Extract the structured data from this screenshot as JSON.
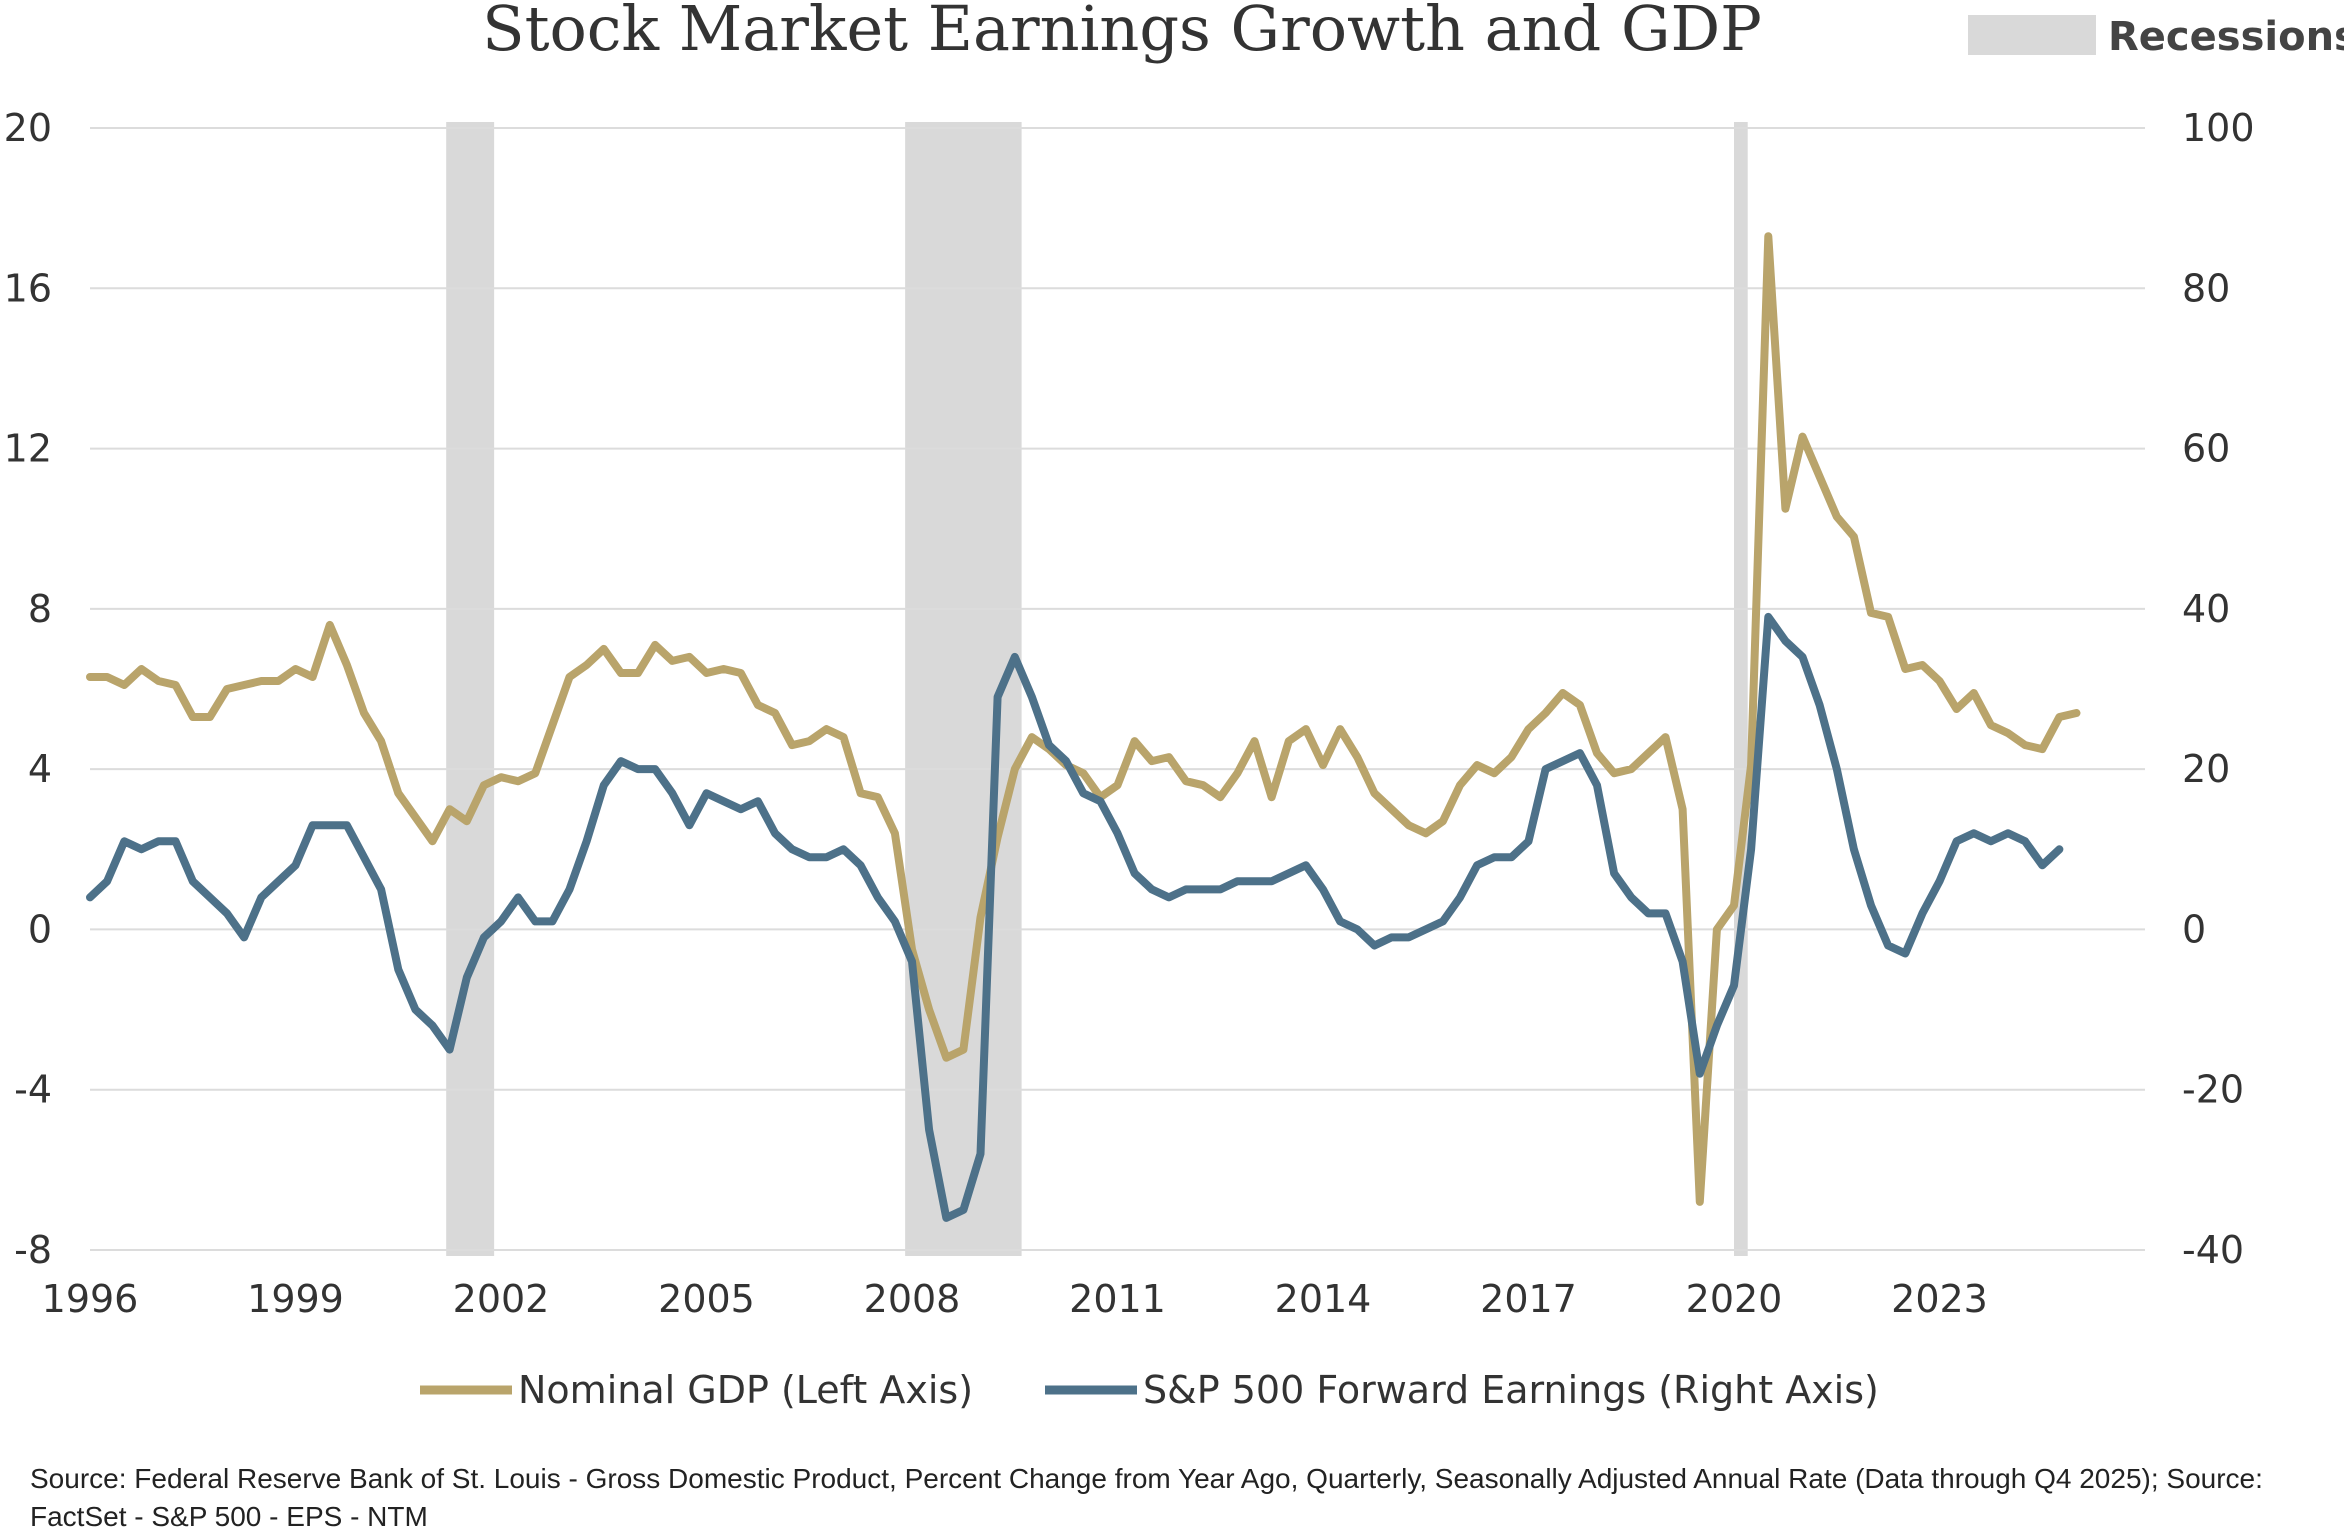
{
  "chart_data": {
    "type": "line",
    "title": "Stock Market Earnings Growth and GDP",
    "recession_label": "Recessions",
    "left_axis": {
      "min": -8,
      "max": 20,
      "ticks": [
        "20",
        "16",
        "12",
        "8",
        "4",
        "0",
        "-4",
        "-8"
      ],
      "tick_values": [
        20,
        16,
        12,
        8,
        4,
        0,
        -4,
        -8
      ]
    },
    "right_axis": {
      "min": -40,
      "max": 100,
      "ticks": [
        "100",
        "80",
        "60",
        "40",
        "20",
        "0",
        "-20",
        "-40"
      ],
      "tick_values": [
        100,
        80,
        60,
        40,
        20,
        0,
        -20,
        -40
      ]
    },
    "x_axis": {
      "min": 1996,
      "max": 2026,
      "ticks": [
        "1996",
        "1999",
        "2002",
        "2005",
        "2008",
        "2011",
        "2014",
        "2017",
        "2020",
        "2023"
      ],
      "tick_values": [
        1996,
        1999,
        2002,
        2005,
        2008,
        2011,
        2014,
        2017,
        2020,
        2023
      ]
    },
    "grid": true,
    "legend_position": "bottom",
    "recessions": [
      {
        "start": 2001.2,
        "end": 2001.9
      },
      {
        "start": 2007.9,
        "end": 2009.6
      },
      {
        "start": 2020.0,
        "end": 2020.2
      }
    ],
    "series": [
      {
        "name": "Nominal GDP (Left Axis)",
        "axis": "left",
        "color": "#b9a46b",
        "x_start": 1996.0,
        "x_step": 0.25,
        "values": [
          6.3,
          6.3,
          6.1,
          6.5,
          6.2,
          6.1,
          5.3,
          5.3,
          6.0,
          6.1,
          6.2,
          6.2,
          6.5,
          6.3,
          7.6,
          6.6,
          5.4,
          4.7,
          3.4,
          2.8,
          2.2,
          3.0,
          2.7,
          3.6,
          3.8,
          3.7,
          3.9,
          5.1,
          6.3,
          6.6,
          7.0,
          6.4,
          6.4,
          7.1,
          6.7,
          6.8,
          6.4,
          6.5,
          6.4,
          5.6,
          5.4,
          4.6,
          4.7,
          5.0,
          4.8,
          3.4,
          3.3,
          2.4,
          -0.5,
          -2.0,
          -3.2,
          -3.0,
          0.3,
          2.3,
          4.0,
          4.8,
          4.5,
          4.1,
          3.9,
          3.3,
          3.6,
          4.7,
          4.2,
          4.3,
          3.7,
          3.6,
          3.3,
          3.9,
          4.7,
          3.3,
          4.7,
          5.0,
          4.1,
          5.0,
          4.3,
          3.4,
          3.0,
          2.6,
          2.4,
          2.7,
          3.6,
          4.1,
          3.9,
          4.3,
          5.0,
          5.4,
          5.9,
          5.6,
          4.4,
          3.9,
          4.0,
          4.4,
          4.8,
          3.0,
          -6.8,
          0.0,
          0.6,
          4.1,
          17.3,
          10.5,
          12.3,
          11.3,
          10.3,
          9.8,
          7.9,
          7.8,
          6.5,
          6.6,
          6.2,
          5.5,
          5.9,
          5.1,
          4.9,
          4.6,
          4.5,
          5.3,
          5.4
        ]
      },
      {
        "name": "S&P 500 Forward Earnings (Right Axis)",
        "axis": "right",
        "color": "#4d7189",
        "x_start": 1996.0,
        "x_step": 0.25,
        "values": [
          4,
          6,
          11,
          10,
          11,
          11,
          6,
          4,
          2,
          -1,
          4,
          6,
          8,
          13,
          13,
          13,
          9,
          5,
          -5,
          -10,
          -12,
          -15,
          -6,
          -1,
          1,
          4,
          1,
          1,
          5,
          11,
          18,
          21,
          20,
          20,
          17,
          13,
          17,
          16,
          15,
          16,
          12,
          10,
          9,
          9,
          10,
          8,
          4,
          1,
          -4,
          -25,
          -36,
          -35,
          -28,
          29,
          34,
          29,
          23,
          21,
          17,
          16,
          12,
          7,
          5,
          4,
          5,
          5,
          5,
          6,
          6,
          6,
          7,
          8,
          5,
          1,
          0,
          -2,
          -1,
          -1,
          0,
          1,
          4,
          8,
          9,
          9,
          11,
          20,
          21,
          22,
          18,
          7,
          4,
          2,
          2,
          -4,
          -18,
          -12,
          -7,
          10,
          39,
          36,
          34,
          28,
          20,
          10,
          3,
          -2,
          -3,
          2,
          6,
          11,
          12,
          11,
          12,
          11,
          8,
          10
        ]
      }
    ],
    "source": "Source: Federal Reserve Bank of St. Louis - Gross Domestic Product, Percent Change from Year Ago, Quarterly, Seasonally Adjusted Annual Rate (Data through Q4 2025); Source: FactSet - S&P 500 - EPS - NTM"
  }
}
